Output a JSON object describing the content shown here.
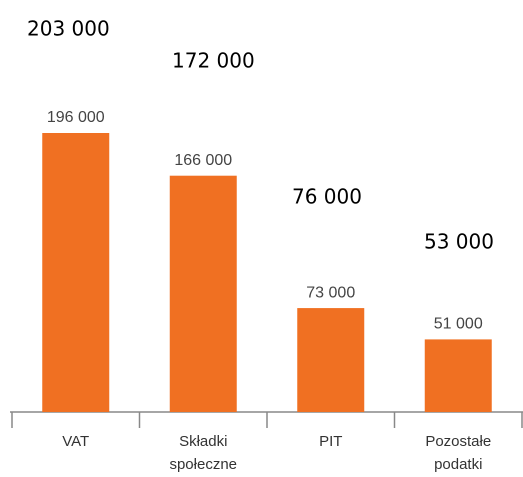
{
  "chart_data": {
    "type": "bar",
    "categories": [
      "VAT",
      "Składki społeczne",
      "PIT",
      "Pozostałe podatki"
    ],
    "values": [
      196000,
      166000,
      73000,
      51000
    ],
    "value_labels": [
      "196 000",
      "166 000",
      "73 000",
      "51 000"
    ],
    "color": "#f07022",
    "annotations": [
      "203 000",
      "172 000",
      "76 000",
      "53 000"
    ]
  }
}
